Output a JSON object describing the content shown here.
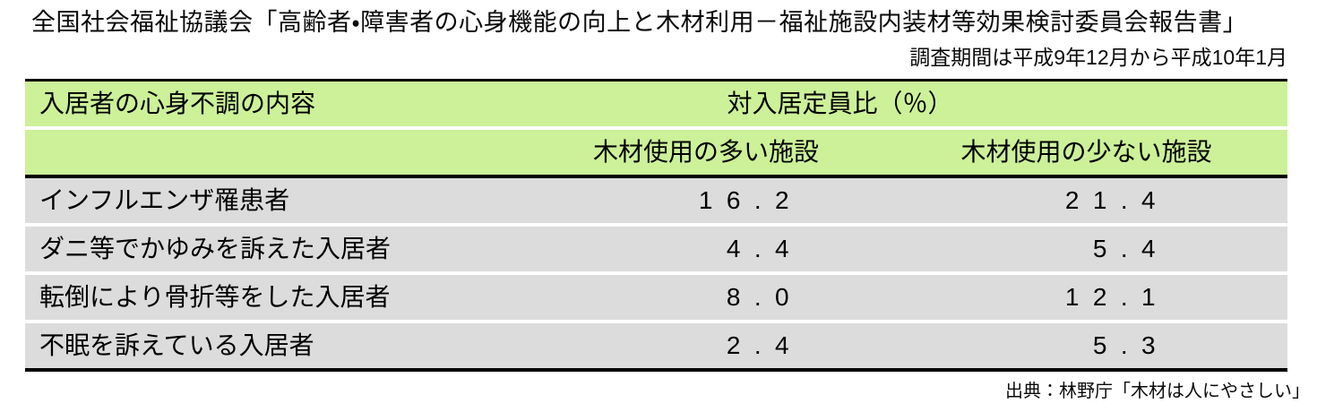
{
  "page": {
    "title": "全国社会福祉協議会「高齢者・障害者の心身機能の向上と木材利用－福祉施設内装材等効果検討委員会報告書」",
    "period_note": "調査期間は平成9年12月から平成10年1月",
    "source_note": "出典：林野庁「木材は人にやさしい」"
  },
  "table": {
    "header": {
      "row_label": "入居者の心身不調の内容",
      "ratio_label": "対入居定員比（％）",
      "col_high_wood": "木材使用の多い施設",
      "col_low_wood": "木材使用の少ない施設"
    },
    "rows": [
      {
        "label": "インフルエンザ罹患者",
        "high_wood": "16.2",
        "low_wood": "21.4"
      },
      {
        "label": "ダニ等でかゆみを訴えた入居者",
        "high_wood": "4.4",
        "low_wood": "5.4"
      },
      {
        "label": "転倒により骨折等をした入居者",
        "high_wood": "8.0",
        "low_wood": "12.1"
      },
      {
        "label": "不眠を訴えている入居者",
        "high_wood": "2.4",
        "low_wood": "5.3"
      }
    ]
  },
  "colors": {
    "header_green": "#ccf198",
    "row_gray": "#dcdcdc",
    "border_black": "#000000"
  },
  "chart_data": {
    "type": "table",
    "title": "対入居定員比（％）",
    "categories": [
      "インフルエンザ罹患者",
      "ダニ等でかゆみを訴えた入居者",
      "転倒により骨折等をした入居者",
      "不眠を訴えている入居者"
    ],
    "series": [
      {
        "name": "木材使用の多い施設",
        "values": [
          16.2,
          4.4,
          8.0,
          2.4
        ]
      },
      {
        "name": "木材使用の少ない施設",
        "values": [
          21.4,
          5.4,
          12.1,
          5.3
        ]
      }
    ]
  }
}
